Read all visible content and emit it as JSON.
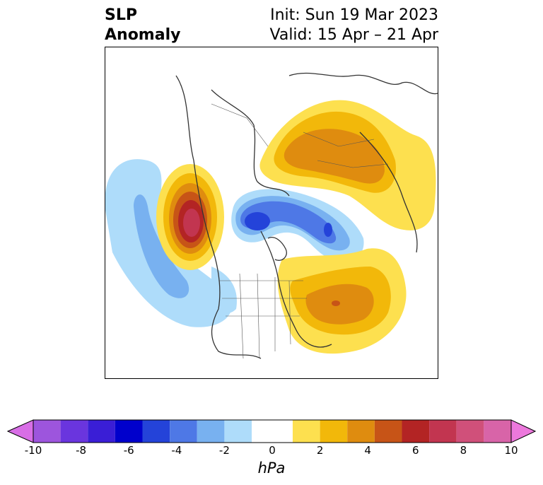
{
  "title": {
    "left_line1": "SLP",
    "left_line2": "Anomaly",
    "right_line1": "Init: Sun 19 Mar 2023",
    "right_line2": "Valid: 15 Apr – 21 Apr"
  },
  "colorbar": {
    "unit": "hPa",
    "ticks": [
      "-10",
      "-8",
      "-6",
      "-4",
      "-2",
      "0",
      "2",
      "4",
      "6",
      "8",
      "10"
    ],
    "colors": {
      "neg_extend": "#d86ee6",
      "neg": [
        "#9d55dd",
        "#6a35de",
        "#3a1ed6",
        "#0000cc",
        "#2443d9",
        "#4e78e6",
        "#78b1f0",
        "#aedcfa"
      ],
      "zero": "#ffffff",
      "pos": [
        "#fde04f",
        "#f2b80a",
        "#df8c0f",
        "#c75417",
        "#b32424",
        "#c23550",
        "#d0507a",
        "#d864a8"
      ],
      "pos_extend": "#ec78dc"
    }
  },
  "map": {
    "projection": "north-polar-stereographic",
    "region": "Northern Hemisphere / North America",
    "anomaly_centers": [
      {
        "name": "positive-center-gulf-of-alaska",
        "peak_hpa": 6
      },
      {
        "name": "negative-center-arctic",
        "peak_hpa": -6
      },
      {
        "name": "negative-center-north-pacific",
        "peak_hpa": -3
      },
      {
        "name": "positive-center-siberia",
        "peak_hpa": 4
      },
      {
        "name": "positive-center-north-atlantic",
        "peak_hpa": 5
      }
    ]
  }
}
